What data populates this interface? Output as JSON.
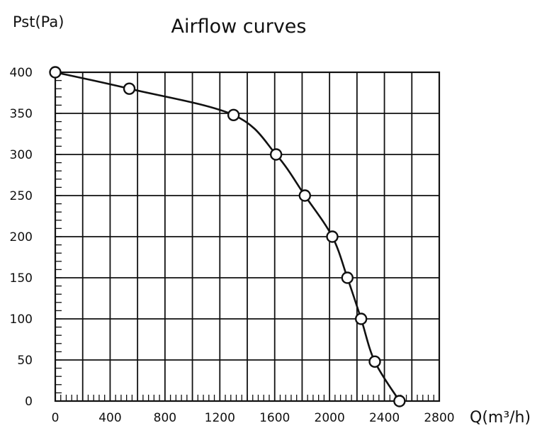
{
  "chart_data": {
    "type": "line",
    "title": "Airflow curves",
    "ylabel": "Pst(Pa)",
    "xlabel": "Q(m³/h)",
    "xlim": [
      0,
      2800
    ],
    "ylim": [
      0,
      400
    ],
    "x_ticks": [
      "0",
      "400",
      "800",
      "1200",
      "1600",
      "2000",
      "2400",
      "2800"
    ],
    "y_ticks": [
      "0",
      "50",
      "100",
      "150",
      "200",
      "250",
      "300",
      "350",
      "400"
    ],
    "grid": true,
    "legend": "none",
    "line_color": "#111111",
    "series": [
      {
        "x": [
          0,
          540,
          1300,
          1610,
          1820,
          2020,
          2130,
          2230,
          2330,
          2510
        ],
        "y": [
          400,
          380,
          348,
          300,
          250,
          200,
          150,
          100,
          48,
          0
        ]
      }
    ]
  }
}
